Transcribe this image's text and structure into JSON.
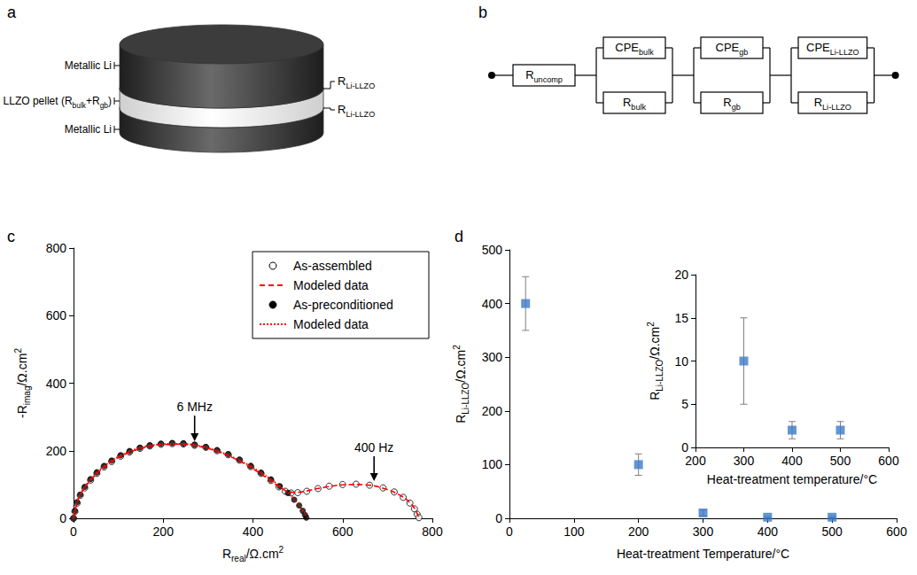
{
  "schematic": {
    "panel": "a",
    "layers": [
      [
        {
          "text": "Metallic Li"
        }
      ],
      [
        {
          "text": "LLZO pellet (R"
        },
        {
          "text": "bulk",
          "sub": true
        },
        {
          "text": "+R"
        },
        {
          "text": "gb",
          "sub": true
        },
        {
          "text": ")"
        }
      ],
      [
        {
          "text": "Metallic Li"
        }
      ]
    ],
    "interfaces": [
      [
        {
          "text": "R"
        },
        {
          "text": "Li-LLZO",
          "sub": true
        }
      ],
      [
        {
          "text": "R"
        },
        {
          "text": "Li-LLZO",
          "sub": true
        }
      ]
    ]
  },
  "circuit": {
    "panel": "b",
    "elements": [
      {
        "label": [
          {
            "text": "R"
          },
          {
            "text": "uncomp",
            "sub": true
          }
        ]
      },
      {
        "parallel": [
          [
            {
              "text": "CPE"
            },
            {
              "text": "bulk",
              "sub": true
            }
          ],
          [
            {
              "text": "R"
            },
            {
              "text": "bulk",
              "sub": true
            }
          ]
        ]
      },
      {
        "parallel": [
          [
            {
              "text": "CPE"
            },
            {
              "text": "gb",
              "sub": true
            }
          ],
          [
            {
              "text": "R"
            },
            {
              "text": "gb",
              "sub": true
            }
          ]
        ]
      },
      {
        "parallel": [
          [
            {
              "text": "CPE"
            },
            {
              "text": "Li-LLZO",
              "sub": true
            }
          ],
          [
            {
              "text": "R"
            },
            {
              "text": "Li-LLZO",
              "sub": true
            }
          ]
        ]
      }
    ]
  },
  "chart_data": [
    {
      "panel": "c",
      "type": "scatter",
      "xlabel": [
        {
          "text": "R"
        },
        {
          "text": "real",
          "sub": true
        },
        {
          "text": "/Ω.cm"
        },
        {
          "text": "2",
          "sup": true
        }
      ],
      "ylabel": [
        {
          "text": "-R"
        },
        {
          "text": "imag",
          "sub": true
        },
        {
          "text": "/Ω.cm"
        },
        {
          "text": "2",
          "sup": true
        }
      ],
      "xlim": [
        0,
        800
      ],
      "xticks": [
        0,
        200,
        400,
        600,
        800
      ],
      "ylim": [
        0,
        800
      ],
      "yticks": [
        0,
        200,
        400,
        600,
        800
      ],
      "grid": false,
      "legend": "upper right",
      "series": [
        {
          "name": "As-assembled",
          "type": "scatter",
          "marker": "circle-open",
          "color": "#000000",
          "x": [
            0,
            3,
            8,
            15,
            25,
            38,
            52,
            68,
            85,
            105,
            125,
            148,
            170,
            195,
            220,
            245,
            270,
            295,
            320,
            345,
            370,
            395,
            418,
            440,
            458,
            472,
            485,
            500,
            520,
            545,
            570,
            600,
            630,
            660,
            690,
            715,
            735,
            750,
            760,
            766,
            770
          ],
          "values": [
            0,
            20,
            45,
            68,
            90,
            113,
            133,
            152,
            168,
            184,
            196,
            207,
            214,
            219,
            221,
            220,
            216,
            210,
            200,
            188,
            172,
            153,
            133,
            112,
            93,
            80,
            75,
            76,
            80,
            88,
            95,
            100,
            101,
            98,
            90,
            78,
            62,
            45,
            28,
            12,
            2
          ]
        },
        {
          "name": "Modeled data",
          "type": "line",
          "line_style": "dashed",
          "color": "#ff0000",
          "x": [
            0,
            10,
            30,
            60,
            100,
            150,
            200,
            240,
            290,
            340,
            390,
            430,
            460,
            480,
            500,
            540,
            590,
            630,
            670,
            710,
            740,
            760,
            770
          ],
          "values": [
            0,
            55,
            100,
            142,
            180,
            207,
            218,
            219,
            210,
            188,
            155,
            120,
            92,
            78,
            77,
            87,
            98,
            100,
            96,
            80,
            58,
            30,
            2
          ]
        },
        {
          "name": "As-preconditioned",
          "type": "scatter",
          "marker": "circle-filled",
          "color": "#000000",
          "x": [
            0,
            3,
            8,
            15,
            25,
            38,
            52,
            68,
            85,
            105,
            125,
            148,
            170,
            195,
            220,
            245,
            270,
            295,
            320,
            345,
            370,
            395,
            418,
            440,
            460,
            478,
            492,
            503,
            511,
            516,
            519
          ],
          "values": [
            0,
            22,
            48,
            70,
            93,
            116,
            136,
            155,
            171,
            187,
            199,
            209,
            216,
            221,
            223,
            222,
            218,
            211,
            202,
            190,
            174,
            155,
            135,
            115,
            95,
            75,
            55,
            38,
            22,
            10,
            2
          ]
        },
        {
          "name": "Modeled data",
          "type": "line",
          "line_style": "dotted",
          "color": "#ff0000",
          "x": [
            0,
            10,
            30,
            60,
            100,
            150,
            200,
            240,
            290,
            340,
            390,
            430,
            465,
            490,
            505,
            515,
            520
          ],
          "values": [
            0,
            57,
            103,
            145,
            183,
            210,
            220,
            221,
            212,
            190,
            158,
            125,
            90,
            60,
            35,
            15,
            2
          ]
        }
      ],
      "annotations": [
        {
          "text": "6 MHz",
          "x": 270,
          "y": 330,
          "arrow_to": [
            270,
            228
          ]
        },
        {
          "text": "400 Hz",
          "x": 670,
          "y": 210,
          "arrow_to": [
            670,
            110
          ]
        }
      ]
    },
    {
      "panel": "d",
      "type": "scatter",
      "xlabel": [
        {
          "text": "Heat-treatment Temperature/°C"
        }
      ],
      "ylabel": [
        {
          "text": "R"
        },
        {
          "text": "Li-LLZO",
          "sub": true
        },
        {
          "text": "/Ω.cm"
        },
        {
          "text": "2",
          "sup": true
        }
      ],
      "xlim": [
        0,
        600
      ],
      "xticks": [
        0,
        100,
        200,
        300,
        400,
        500,
        600
      ],
      "ylim": [
        0,
        500
      ],
      "yticks": [
        0,
        100,
        200,
        300,
        400,
        500
      ],
      "grid": false,
      "marker": "square",
      "color": "#3a7ac8",
      "x": [
        25,
        200,
        300,
        400,
        500
      ],
      "values": [
        400,
        100,
        10,
        2,
        2
      ],
      "errors": [
        50,
        20,
        5,
        1,
        1
      ],
      "inset": {
        "type": "scatter",
        "xlabel": [
          {
            "text": "Heat-treatment temperature/°C"
          }
        ],
        "ylabel": [
          {
            "text": "R"
          },
          {
            "text": "Li-LLZO",
            "sub": true
          },
          {
            "text": "/Ω.cm"
          },
          {
            "text": "2",
            "sup": true
          }
        ],
        "xlim": [
          200,
          600
        ],
        "xticks": [
          200,
          300,
          400,
          500,
          600
        ],
        "ylim": [
          0,
          20
        ],
        "yticks": [
          0,
          5,
          10,
          15,
          20
        ],
        "grid": false,
        "marker": "square",
        "color": "#3a7ac8",
        "x": [
          300,
          400,
          500
        ],
        "values": [
          10,
          2,
          2
        ],
        "errors": [
          5,
          1,
          1
        ]
      }
    }
  ]
}
